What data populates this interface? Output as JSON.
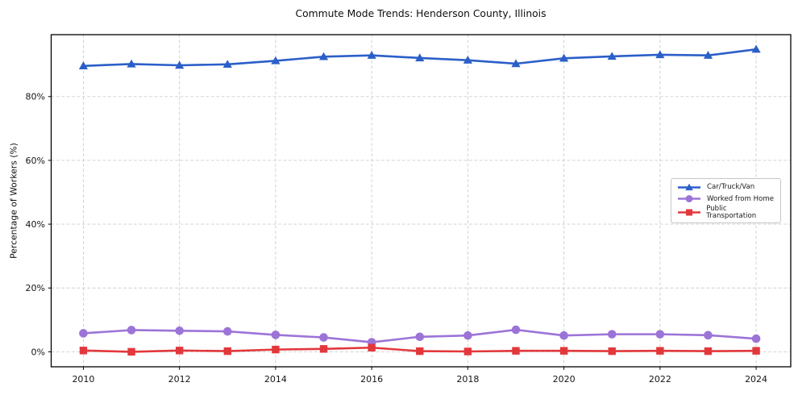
{
  "chart_data": {
    "type": "line",
    "title": "Commute Mode Trends: Henderson County, Illinois",
    "xlabel": "",
    "ylabel": "Percentage of Workers (%)",
    "x": [
      2010,
      2011,
      2012,
      2013,
      2014,
      2015,
      2016,
      2017,
      2018,
      2019,
      2020,
      2021,
      2022,
      2023,
      2024
    ],
    "x_ticks": [
      2010,
      2012,
      2014,
      2016,
      2018,
      2020,
      2022,
      2024
    ],
    "y_ticks": [
      0,
      20,
      40,
      60,
      80
    ],
    "y_tick_suffix": "%",
    "xlim": [
      2009.33,
      2024.72
    ],
    "ylim": [
      -4.7,
      99.4
    ],
    "grid": true,
    "grid_style": "dashed",
    "legend_position": "center right",
    "series": [
      {
        "name": "Car/Truck/Van",
        "color": "#2b5fc8",
        "marker": "triangle",
        "values": [
          89.6,
          90.2,
          89.8,
          90.1,
          91.2,
          92.5,
          92.9,
          92.1,
          91.4,
          90.3,
          92.0,
          92.6,
          93.1,
          92.9,
          94.8
        ]
      },
      {
        "name": "Worked from Home",
        "color": "#9c74d8",
        "marker": "circle",
        "values": [
          5.8,
          6.8,
          6.6,
          6.4,
          5.3,
          4.5,
          3.0,
          4.7,
          5.1,
          6.9,
          5.1,
          5.5,
          5.5,
          5.2,
          4.1
        ]
      },
      {
        "name": "Public Transportation",
        "color": "#e2383c",
        "marker": "square",
        "values": [
          0.4,
          0.0,
          0.4,
          0.2,
          0.7,
          0.9,
          1.3,
          0.2,
          0.1,
          0.3,
          0.3,
          0.2,
          0.3,
          0.2,
          0.3
        ]
      }
    ]
  }
}
